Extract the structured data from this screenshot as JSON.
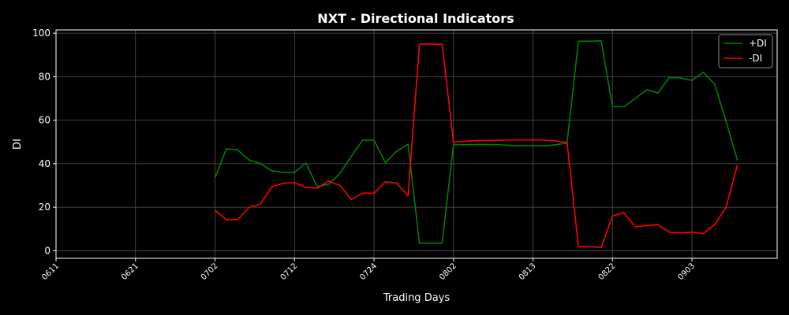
{
  "chart_data": {
    "type": "line",
    "title": "NXT - Directional Indicators",
    "xlabel": "Trading Days",
    "ylabel": "DI",
    "x_ticks": [
      {
        "label": "0611",
        "index": -14
      },
      {
        "label": "0621",
        "index": -7
      },
      {
        "label": "0702",
        "index": 0
      },
      {
        "label": "0712",
        "index": 7
      },
      {
        "label": "0724",
        "index": 14
      },
      {
        "label": "0802",
        "index": 21
      },
      {
        "label": "0813",
        "index": 28
      },
      {
        "label": "0822",
        "index": 35
      },
      {
        "label": "0903",
        "index": 42
      }
    ],
    "x_range": [
      -14,
      49.5
    ],
    "ylim": [
      -3.5,
      101.5
    ],
    "y_ticks": [
      0,
      20,
      40,
      60,
      80,
      100
    ],
    "grid": true,
    "legend_position": "top-right",
    "colors": {
      "background": "#000000",
      "grid": "#555555",
      "axis": "#ffffff"
    },
    "series": [
      {
        "name": "+DI",
        "color": "#008000",
        "values": [
          33.5,
          46.8,
          46.3,
          41.7,
          40.0,
          36.7,
          36.0,
          36.0,
          40.3,
          29.5,
          30.5,
          35.5,
          43.4,
          50.8,
          50.8,
          40.5,
          45.7,
          49.0,
          3.5,
          3.5,
          3.5,
          48.9,
          48.7,
          48.8,
          48.8,
          48.7,
          48.4,
          48.3,
          48.3,
          48.2,
          48.7,
          49.5,
          96.3,
          96.3,
          96.5,
          66.2,
          66.2,
          70.0,
          74.0,
          72.5,
          79.6,
          79.4,
          78.3,
          82.0,
          76.5,
          59.5,
          41.5
        ]
      },
      {
        "name": "-DI",
        "color": "#ff0000",
        "values": [
          18.6,
          14.2,
          14.3,
          19.9,
          21.4,
          29.3,
          31.0,
          31.3,
          29.1,
          28.7,
          32.0,
          30.0,
          23.5,
          26.5,
          26.4,
          31.7,
          31.1,
          25.2,
          95.0,
          95.0,
          94.9,
          50.0,
          50.3,
          50.7,
          50.6,
          50.8,
          50.9,
          50.9,
          50.9,
          50.9,
          50.4,
          49.8,
          1.8,
          1.8,
          1.5,
          16.0,
          17.5,
          11.0,
          11.5,
          12.0,
          8.5,
          8.2,
          8.5,
          7.9,
          12.0,
          20.0,
          39.5
        ]
      }
    ]
  }
}
